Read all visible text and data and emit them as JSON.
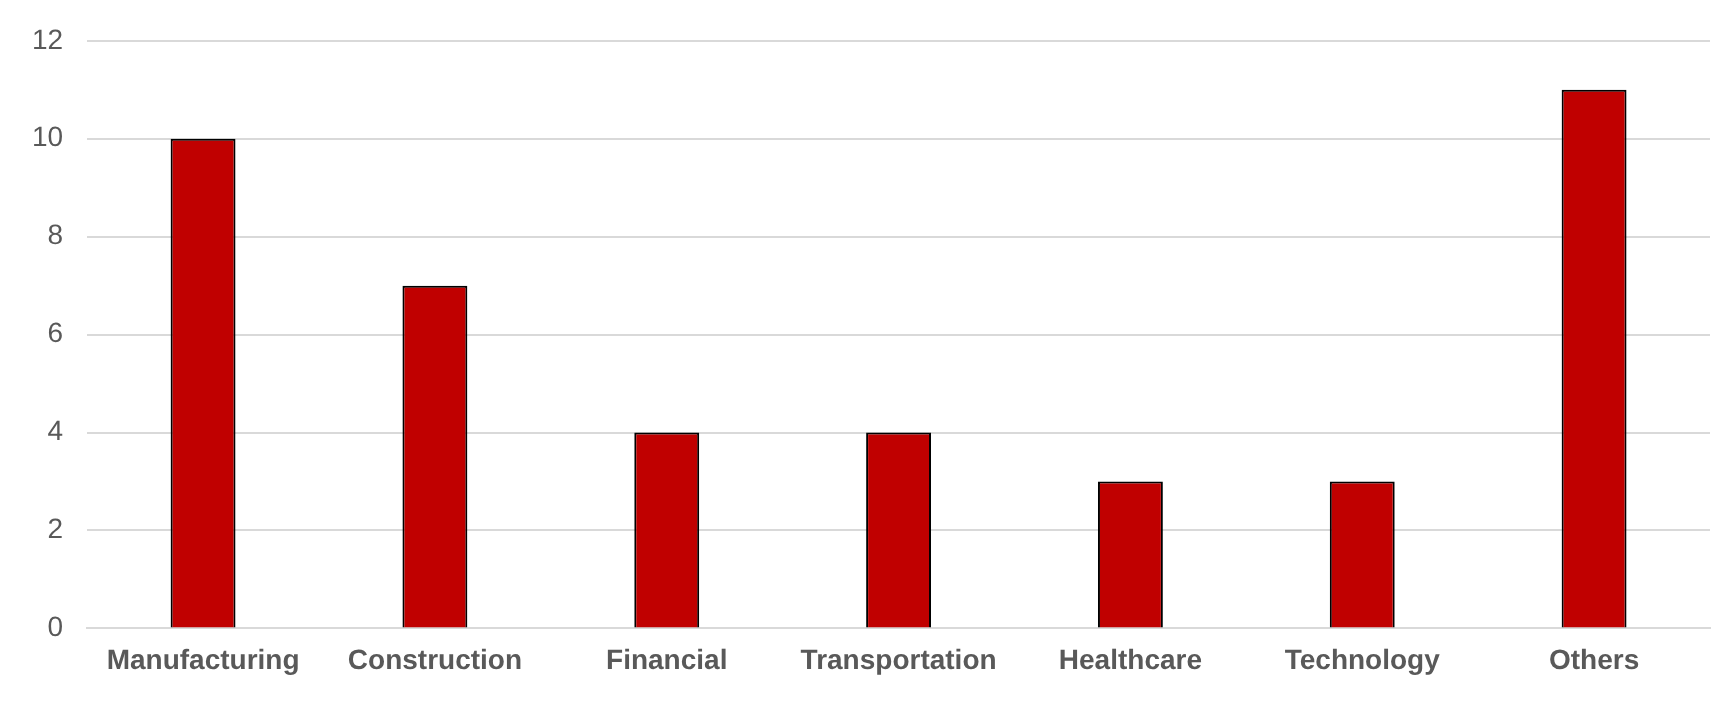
{
  "chart_data": {
    "type": "bar",
    "categories": [
      "Manufacturing",
      "Construction",
      "Financial",
      "Transportation",
      "Healthcare",
      "Technology",
      "Others"
    ],
    "values": [
      10,
      7,
      4,
      4,
      3,
      3,
      11
    ],
    "color": "#c00000",
    "ylim": [
      0,
      12
    ],
    "yticks": [
      0,
      2,
      4,
      6,
      8,
      10,
      12
    ],
    "grid": "y",
    "legend": false
  }
}
